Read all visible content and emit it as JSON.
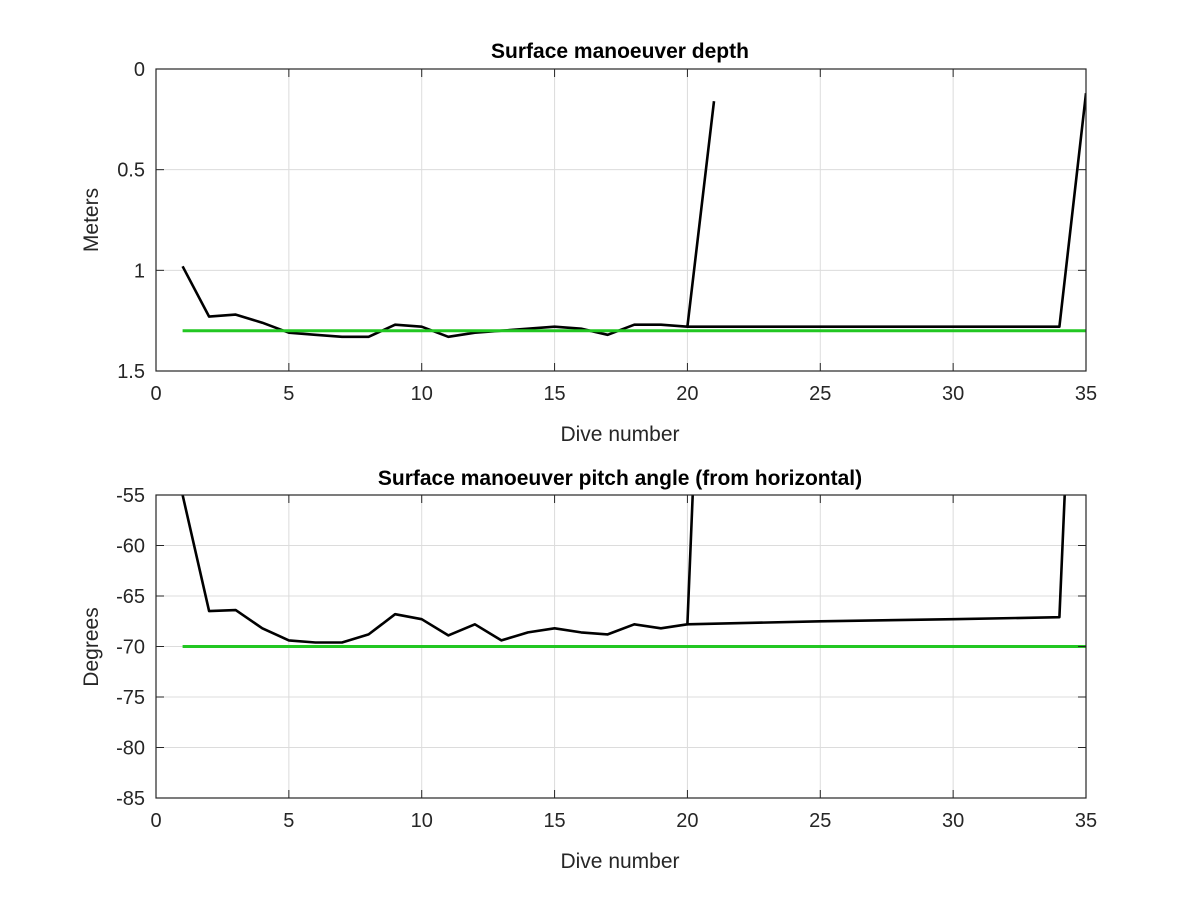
{
  "chart_data": [
    {
      "type": "line",
      "title": "Surface manoeuver depth",
      "xlabel": "Dive number",
      "ylabel": "Meters",
      "xlim": [
        0,
        35
      ],
      "ylim": [
        0,
        1.5
      ],
      "y_reversed": true,
      "xticks": [
        0,
        5,
        10,
        15,
        20,
        25,
        30,
        35
      ],
      "yticks": [
        0,
        0.5,
        1,
        1.5
      ],
      "ytick_labels": [
        "0",
        "0.5",
        "1",
        "1.5"
      ],
      "grid": true,
      "series": [
        {
          "color": "#000000",
          "points": [
            [
              1,
              0.98
            ],
            [
              2,
              1.23
            ],
            [
              3,
              1.22
            ],
            [
              4,
              1.26
            ],
            [
              5,
              1.31
            ],
            [
              6,
              1.32
            ],
            [
              7,
              1.33
            ],
            [
              8,
              1.33
            ],
            [
              9,
              1.27
            ],
            [
              10,
              1.28
            ],
            [
              11,
              1.33
            ],
            [
              12,
              1.31
            ],
            [
              13,
              1.3
            ],
            [
              14,
              1.29
            ],
            [
              15,
              1.28
            ],
            [
              16,
              1.29
            ],
            [
              17,
              1.32
            ],
            [
              18,
              1.27
            ],
            [
              19,
              1.27
            ],
            [
              20,
              1.28
            ],
            [
              21,
              0.16
            ]
          ]
        },
        {
          "color": "#000000",
          "points": [
            [
              20,
              1.28
            ],
            [
              34,
              1.28
            ],
            [
              35,
              0.12
            ]
          ]
        },
        {
          "color": "#22c722",
          "points": [
            [
              1,
              1.3
            ],
            [
              35,
              1.3
            ]
          ]
        }
      ]
    },
    {
      "type": "line",
      "title": "Surface manoeuver pitch angle (from horizontal)",
      "xlabel": "Dive number",
      "ylabel": "Degrees",
      "xlim": [
        0,
        35
      ],
      "ylim": [
        -85,
        -55
      ],
      "y_reversed": false,
      "xticks": [
        0,
        5,
        10,
        15,
        20,
        25,
        30,
        35
      ],
      "yticks": [
        -55,
        -60,
        -65,
        -70,
        -75,
        -80,
        -85
      ],
      "ytick_labels": [
        "-55",
        "-60",
        "-65",
        "-70",
        "-75",
        "-80",
        "-85"
      ],
      "grid": true,
      "series": [
        {
          "color": "#000000",
          "points": [
            [
              1,
              -55
            ],
            [
              2,
              -66.5
            ],
            [
              3,
              -66.4
            ],
            [
              4,
              -68.2
            ],
            [
              5,
              -69.4
            ],
            [
              6,
              -69.6
            ],
            [
              7,
              -69.6
            ],
            [
              8,
              -68.8
            ],
            [
              9,
              -66.8
            ],
            [
              10,
              -67.3
            ],
            [
              11,
              -68.9
            ],
            [
              12,
              -67.8
            ],
            [
              13,
              -69.4
            ],
            [
              14,
              -68.6
            ],
            [
              15,
              -68.2
            ],
            [
              16,
              -68.6
            ],
            [
              17,
              -68.8
            ],
            [
              18,
              -67.8
            ],
            [
              19,
              -68.2
            ],
            [
              20,
              -67.8
            ],
            [
              20.2,
              -55
            ]
          ]
        },
        {
          "color": "#000000",
          "points": [
            [
              20,
              -67.8
            ],
            [
              25,
              -67.5
            ],
            [
              30,
              -67.3
            ],
            [
              34,
              -67.1
            ],
            [
              34.2,
              -55
            ]
          ]
        },
        {
          "color": "#22c722",
          "points": [
            [
              1,
              -70
            ],
            [
              35,
              -70
            ]
          ]
        }
      ]
    }
  ]
}
